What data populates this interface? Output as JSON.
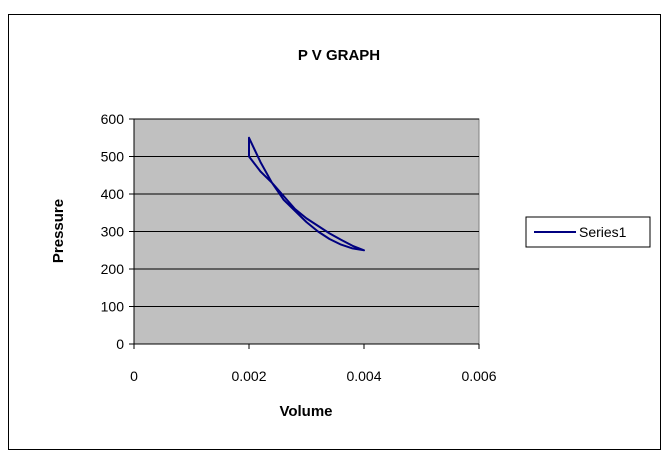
{
  "chart_data": {
    "type": "line",
    "title": "P V GRAPH",
    "xlabel": "Volume",
    "ylabel": "Pressure",
    "xlim": [
      0,
      0.006
    ],
    "ylim": [
      0,
      600
    ],
    "x_ticks": [
      "0",
      "0.002",
      "0.004",
      "0.006"
    ],
    "y_ticks": [
      "0",
      "100",
      "200",
      "300",
      "400",
      "500",
      "600"
    ],
    "grid": "horizontal",
    "legend_position": "right",
    "plot_background": "#c0c0c0",
    "series": [
      {
        "name": "Series1",
        "color": "#000080",
        "x": [
          0.002,
          0.0022,
          0.0024,
          0.0026,
          0.0028,
          0.003,
          0.0032,
          0.0034,
          0.0036,
          0.0038,
          0.004,
          0.0038,
          0.0036,
          0.0034,
          0.0032,
          0.003,
          0.0028,
          0.0026,
          0.0024,
          0.0022,
          0.002,
          0.002
        ],
        "y": [
          550,
          485,
          430,
          385,
          355,
          325,
          300,
          280,
          265,
          255,
          250,
          262,
          278,
          295,
          315,
          335,
          360,
          395,
          430,
          460,
          500,
          550
        ]
      }
    ]
  }
}
